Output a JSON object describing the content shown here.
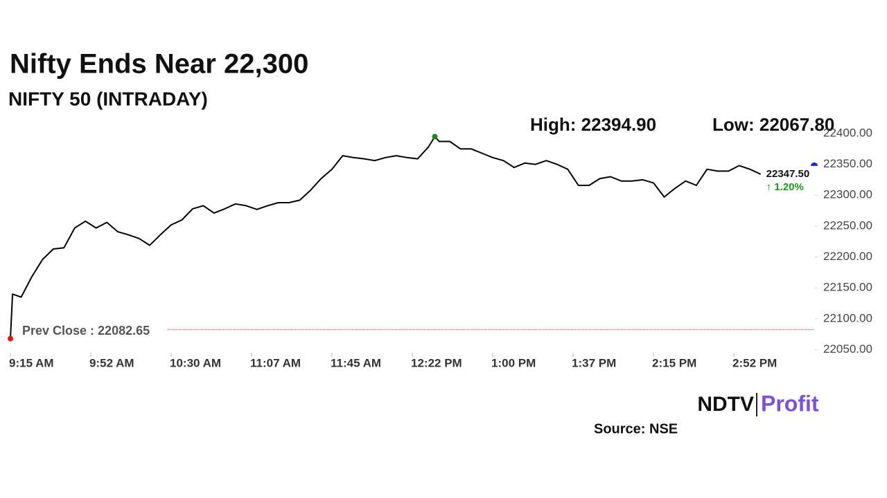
{
  "chart_data": {
    "type": "line",
    "title": "Nifty Ends Near 22,300",
    "subtitle": "NIFTY 50 (INTRADAY)",
    "high": {
      "text": "High: 22394.90",
      "value": 22394.9,
      "x": "12:33"
    },
    "low": {
      "text": "Low: 22067.80",
      "value": 22067.8,
      "x": "09:15"
    },
    "prev_close": {
      "text": "Prev Close : 22082.65",
      "value": 22082.65
    },
    "last": {
      "label": "22347.50",
      "value": 22347.5,
      "change": "↑ 1.20%"
    },
    "source": "Source: NSE",
    "logo": {
      "left": "NDTV",
      "right": "Profit"
    },
    "color": "#000000",
    "x": [
      "09:15",
      "09:16",
      "09:20",
      "09:25",
      "09:30",
      "09:35",
      "09:40",
      "09:45",
      "09:50",
      "09:55",
      "10:00",
      "10:05",
      "10:10",
      "10:15",
      "10:20",
      "10:25",
      "10:30",
      "10:35",
      "10:40",
      "10:45",
      "10:50",
      "10:55",
      "11:00",
      "11:05",
      "11:10",
      "11:15",
      "11:20",
      "11:25",
      "11:30",
      "11:35",
      "11:40",
      "11:45",
      "11:50",
      "11:55",
      "12:00",
      "12:05",
      "12:10",
      "12:15",
      "12:20",
      "12:25",
      "12:30",
      "12:33",
      "12:35",
      "12:40",
      "12:45",
      "12:50",
      "12:55",
      "13:00",
      "13:05",
      "13:10",
      "13:15",
      "13:20",
      "13:25",
      "13:30",
      "13:35",
      "13:40",
      "13:45",
      "13:50",
      "13:55",
      "14:00",
      "14:05",
      "14:10",
      "14:15",
      "14:20",
      "14:25",
      "14:30",
      "14:35",
      "14:40",
      "14:45",
      "14:50",
      "14:55",
      "15:00",
      "15:05"
    ],
    "values": [
      22067.8,
      22140,
      22135,
      22168,
      22196,
      22213,
      22215,
      22247,
      22258,
      22247,
      22256,
      22241,
      22236,
      22230,
      22219,
      22236,
      22252,
      22260,
      22278,
      22283,
      22271,
      22278,
      22286,
      22283,
      22277,
      22283,
      22288,
      22288,
      22292,
      22308,
      22327,
      22342,
      22364,
      22361,
      22359,
      22356,
      22361,
      22364,
      22361,
      22359,
      22378,
      22394.9,
      22387,
      22387,
      22375,
      22375,
      22368,
      22361,
      22356,
      22345,
      22352,
      22350,
      22356,
      22350,
      22342,
      22316,
      22316,
      22327,
      22330,
      22323,
      22323,
      22325,
      22320,
      22297,
      22311,
      22323,
      22316,
      22342,
      22339,
      22339,
      22348,
      22342,
      22334
    ],
    "xlim": [
      "09:15",
      "15:30"
    ],
    "xticks": [
      {
        "value": "09:15",
        "label": "9:15 AM"
      },
      {
        "value": "09:52:30",
        "label": "9:52 AM"
      },
      {
        "value": "10:30",
        "label": "10:30 AM"
      },
      {
        "value": "11:07:30",
        "label": "11:07 AM"
      },
      {
        "value": "11:45",
        "label": "11:45 AM"
      },
      {
        "value": "12:22:30",
        "label": "12:22 PM"
      },
      {
        "value": "13:00",
        "label": "1:00 PM"
      },
      {
        "value": "13:37:30",
        "label": "1:37 PM"
      },
      {
        "value": "14:15",
        "label": "2:15 PM"
      },
      {
        "value": "14:52:30",
        "label": "2:52 PM"
      }
    ],
    "ylim": [
      22045,
      22410
    ],
    "yticks": [
      {
        "value": 22050,
        "label": "22050.00"
      },
      {
        "value": 22100,
        "label": "22100.00"
      },
      {
        "value": 22150,
        "label": "22150.00"
      },
      {
        "value": 22200,
        "label": "22200.00"
      },
      {
        "value": 22250,
        "label": "22250.00"
      },
      {
        "value": 22300,
        "label": "22300.00"
      },
      {
        "value": 22350,
        "label": "22350.00"
      },
      {
        "value": 22400,
        "label": "22400.00"
      }
    ]
  }
}
